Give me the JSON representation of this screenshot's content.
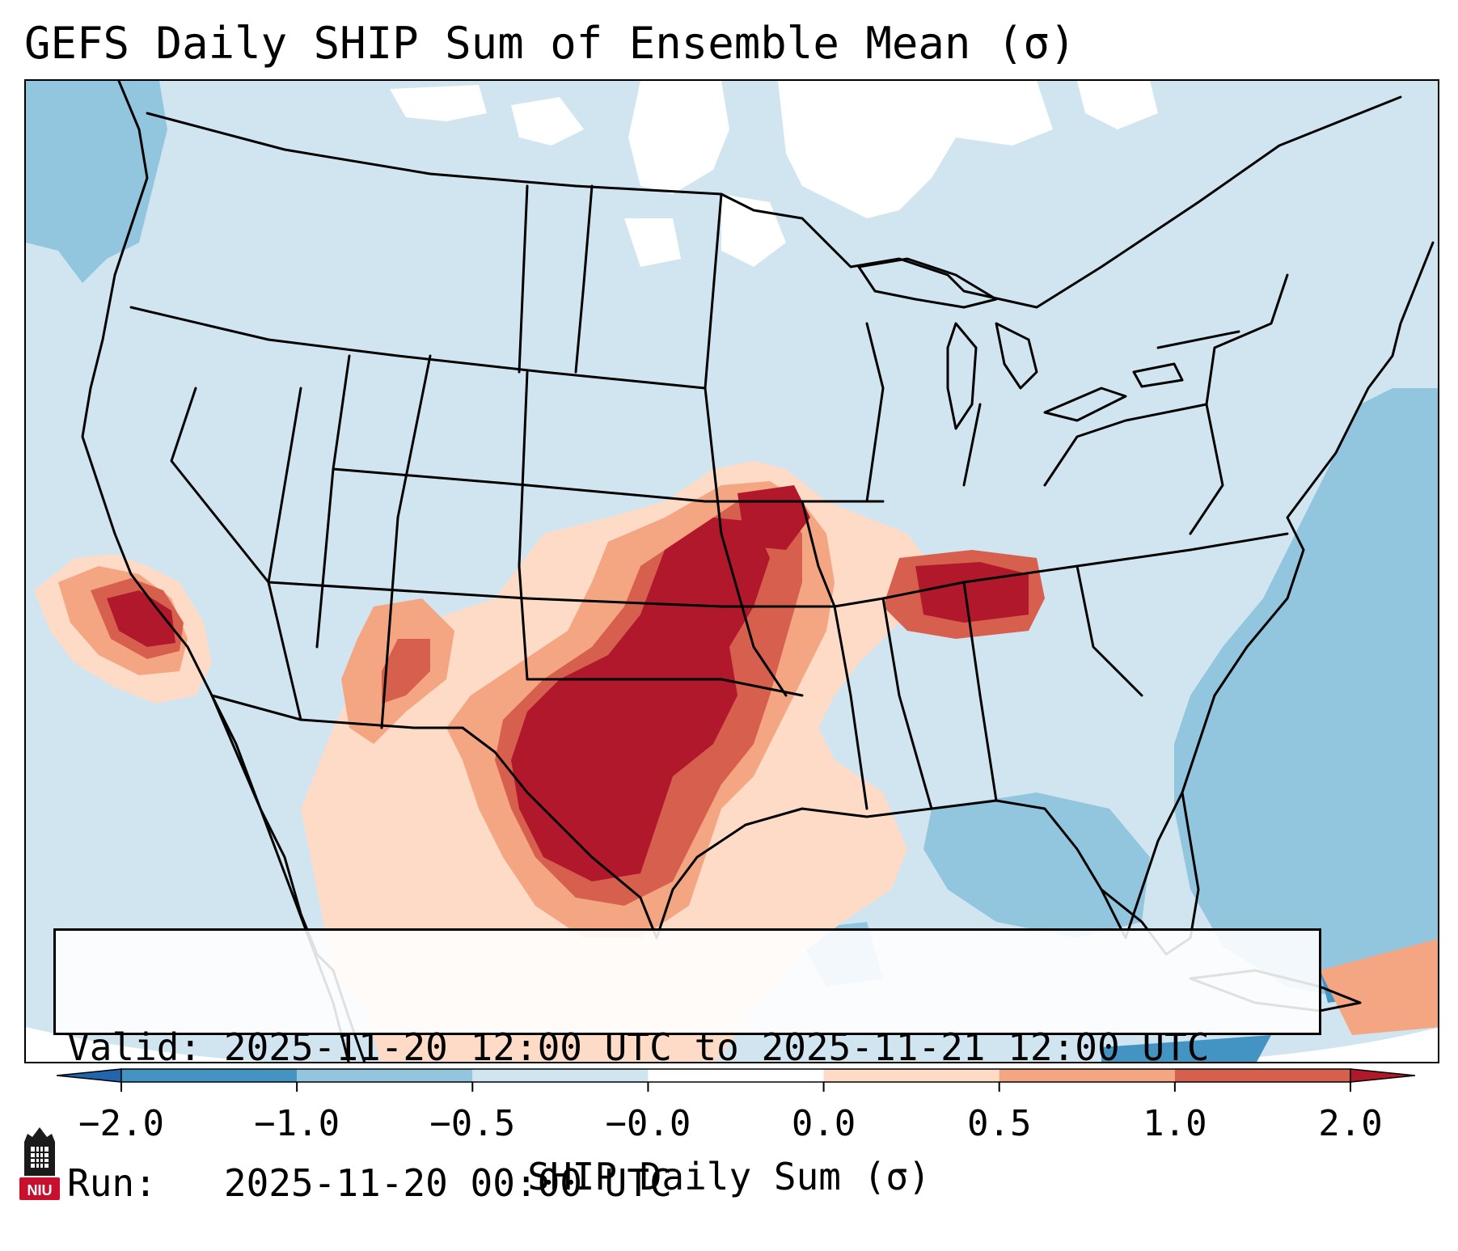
{
  "title": "GEFS Daily SHIP Sum of Ensemble Mean (σ)",
  "info": {
    "valid_label": "Valid:",
    "valid_value": "2025-11-20 12:00 UTC to 2025-11-21 12:00 UTC",
    "run_label": "Run:",
    "run_value": "2025-11-20 00:00 UTC"
  },
  "colorbar": {
    "label": "SHIP Daily Sum (σ)",
    "ticks": [
      "−2.0",
      "−1.0",
      "−0.5",
      "−0.0",
      "0.0",
      "0.5",
      "1.0",
      "2.0"
    ],
    "bin_colors": [
      "#4393c3",
      "#92c5de",
      "#d1e5f0",
      "#ffffff",
      "#fddbc7",
      "#f4a582",
      "#d6604d"
    ],
    "under_color": "#2166ac",
    "over_color": "#b2182b",
    "extend": "both"
  },
  "colors": {
    "land_background": "#d1e5f0",
    "ocean_negative": "#92c5de",
    "near_zero": "#ffffff",
    "light_positive": "#fddbc7",
    "moderate_positive": "#f4a582",
    "strong_positive": "#d6604d",
    "extreme_positive": "#b2182b",
    "boundaries": "#000000"
  },
  "logo": {
    "text": "NIU",
    "color": "#c8102e"
  }
}
